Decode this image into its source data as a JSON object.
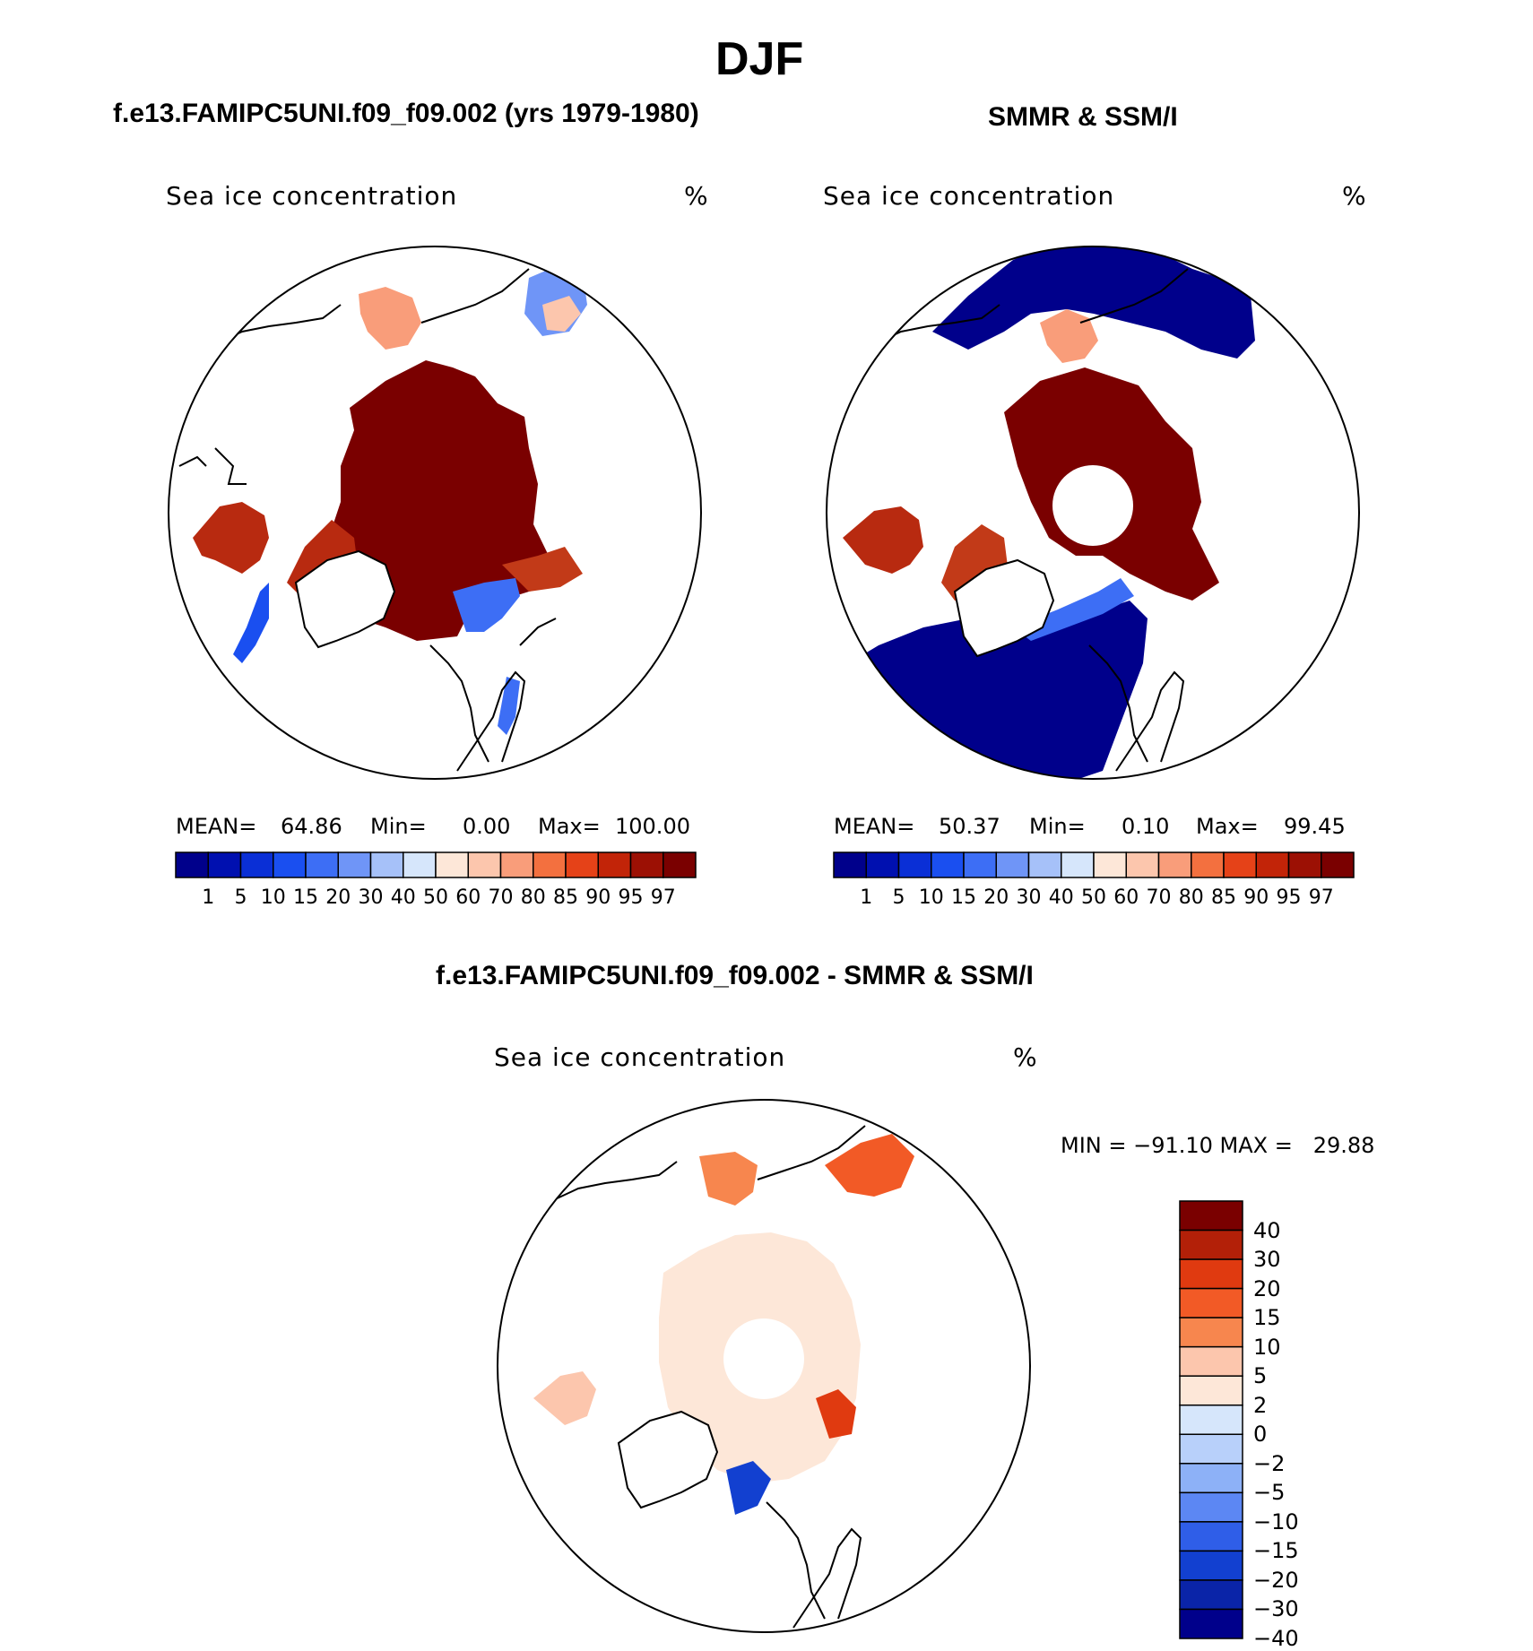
{
  "figure": {
    "title": "DJF",
    "panel_left_header": "f.e13.FAMIPC5UNI.f09_f09.002 (yrs 1979-1980)",
    "panel_right_header": "SMMR & SSM/I",
    "panel_bottom_header": "f.e13.FAMIPC5UNI.f09_f09.002 - SMMR & SSM/I"
  },
  "panels": [
    {
      "id": "model",
      "variable": "Sea ice concentration",
      "units": "%",
      "stats": {
        "mean_label": "MEAN=",
        "mean": "64.86",
        "min_label": "Min=",
        "min": "0.00",
        "max_label": "Max=",
        "max": "100.00"
      }
    },
    {
      "id": "obs",
      "variable": "Sea ice concentration",
      "units": "%",
      "stats": {
        "mean_label": "MEAN=",
        "mean": "50.37",
        "min_label": "Min=",
        "min": "0.10",
        "max_label": "Max=",
        "max": "99.45"
      }
    },
    {
      "id": "diff",
      "variable": "Sea ice concentration",
      "units": "%",
      "stats": {
        "text": "MIN = −91.10 MAX =   29.88"
      }
    }
  ],
  "colorbar_abs": {
    "labels": [
      "1",
      "5",
      "10",
      "15",
      "20",
      "30",
      "40",
      "50",
      "60",
      "70",
      "80",
      "85",
      "90",
      "95",
      "97"
    ],
    "colors": [
      "#00008b",
      "#0010b0",
      "#0a2fd6",
      "#1a4ff0",
      "#3d6ef5",
      "#6f95f7",
      "#a6c1f9",
      "#d6e6fb",
      "#fde7d8",
      "#fcc6ad",
      "#f99d7a",
      "#f3703f",
      "#e54218",
      "#c22408",
      "#9c1004",
      "#7a0000"
    ]
  },
  "colorbar_diff": {
    "labels": [
      "40",
      "30",
      "20",
      "15",
      "10",
      "5",
      "2",
      "0",
      "−2",
      "−5",
      "−10",
      "−15",
      "−20",
      "−30",
      "−40"
    ],
    "colors": [
      "#7a0000",
      "#b32008",
      "#e03a10",
      "#f25a26",
      "#f7864e",
      "#fcc6ad",
      "#fde7d8",
      "#d6e6fb",
      "#b8d0fa",
      "#8db1f7",
      "#5c87f3",
      "#2f5ee8",
      "#1240d0",
      "#0a24a8",
      "#00008b"
    ]
  }
}
